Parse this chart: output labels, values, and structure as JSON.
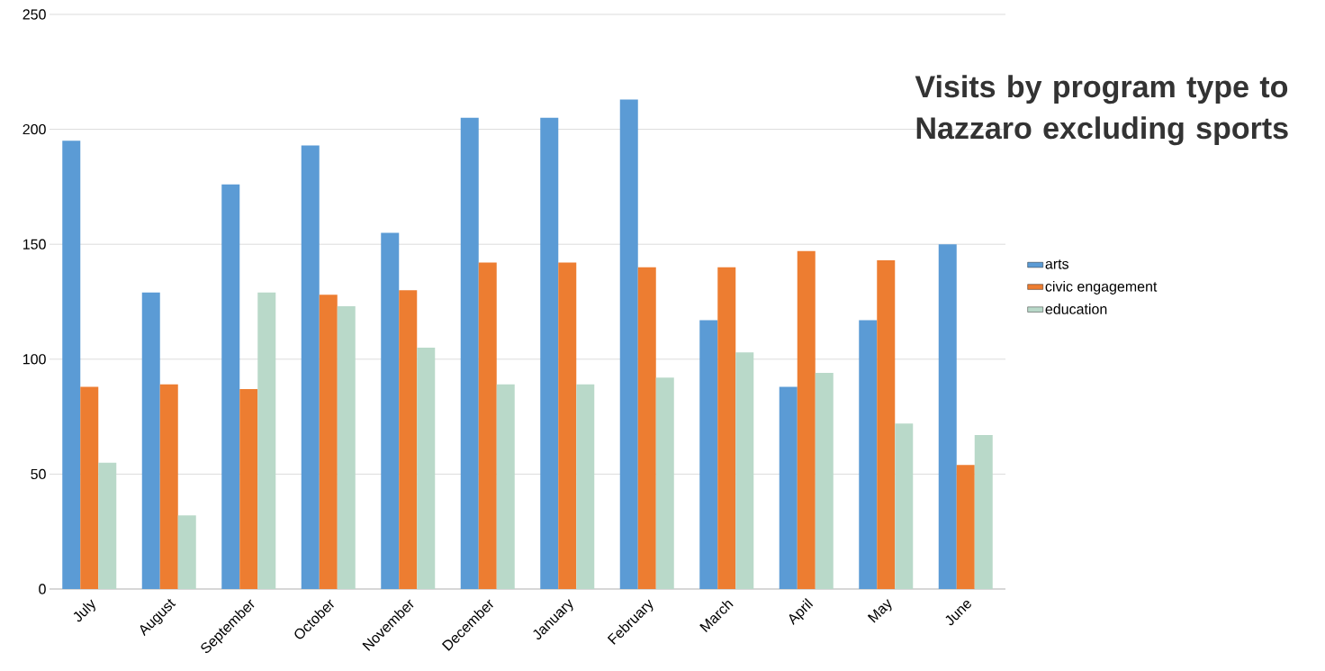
{
  "chart_data": {
    "type": "bar",
    "title": "Visits by program type to Nazzaro excluding sports",
    "categories": [
      "July",
      "August",
      "September",
      "October",
      "November",
      "December",
      "January",
      "February",
      "March",
      "April",
      "May",
      "June"
    ],
    "series": [
      {
        "name": "arts",
        "color": "#5b9bd5",
        "values": [
          195,
          129,
          176,
          193,
          155,
          205,
          205,
          213,
          117,
          88,
          117,
          150
        ]
      },
      {
        "name": "civic engagement",
        "color": "#ed7d31",
        "values": [
          88,
          89,
          87,
          128,
          130,
          142,
          142,
          140,
          140,
          147,
          143,
          54
        ]
      },
      {
        "name": "education",
        "color": "#b9d9c9",
        "values": [
          55,
          32,
          129,
          123,
          105,
          89,
          89,
          92,
          103,
          94,
          72,
          67
        ]
      }
    ],
    "ylim": [
      0,
      250
    ],
    "yticks": [
      0,
      50,
      100,
      150,
      200,
      250
    ],
    "grid": "y",
    "legend": "right"
  }
}
